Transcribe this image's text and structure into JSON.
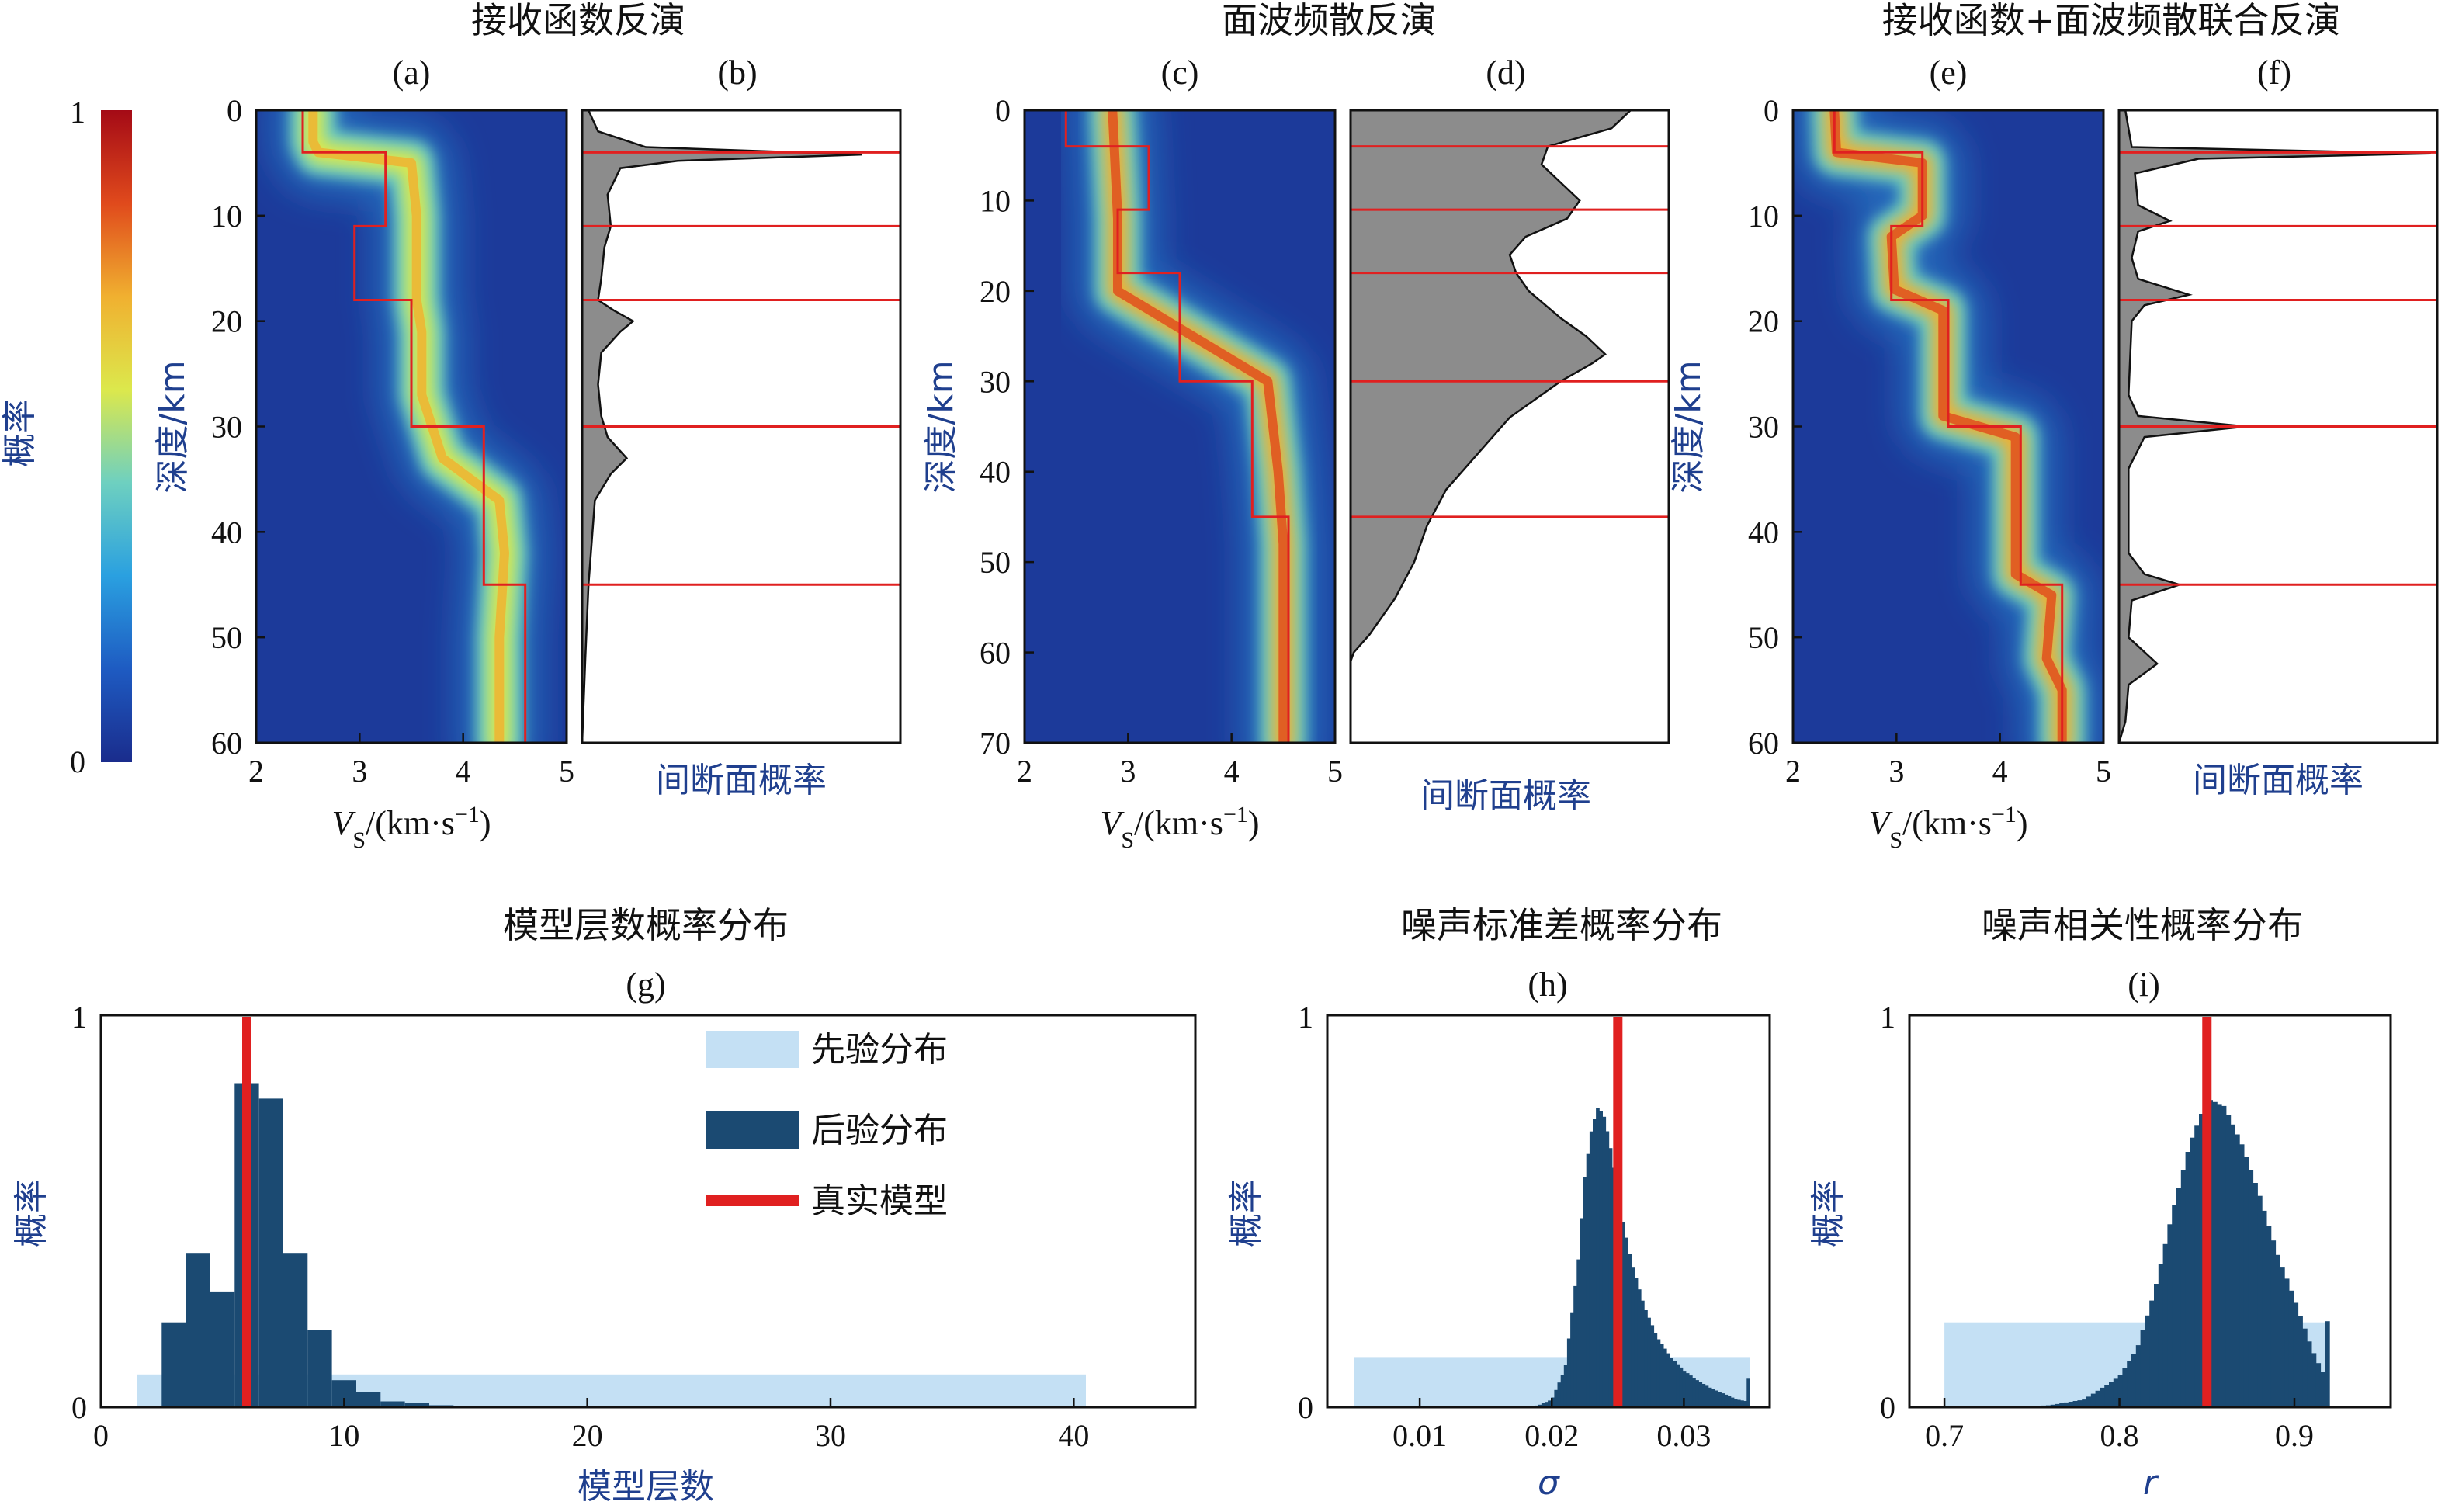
{
  "colors": {
    "cmap": [
      "#1a2c8c",
      "#1e5bc2",
      "#2aa0e0",
      "#6ed0c0",
      "#dce84c",
      "#f0b030",
      "#e04a1c",
      "#a40a16"
    ],
    "heat_bg": "#1c3a9a",
    "true_model": "#e02020",
    "disc_fill": "#8c8c8c",
    "prior": "#c4e0f4",
    "posterior": "#1b4a72",
    "blue_text": "#1f3f8e"
  },
  "colorbar": {
    "max_label": "1",
    "min_label": "0",
    "label": "概率"
  },
  "titles": {
    "rf": "接收函数反演",
    "sw": "面波频散反演",
    "joint": "接收函数+面波频散联合反演",
    "layers": "模型层数概率分布",
    "noise_std": "噪声标准差概率分布",
    "noise_corr": "噪声相关性概率分布"
  },
  "panels": {
    "a": "(a)",
    "b": "(b)",
    "c": "(c)",
    "d": "(d)",
    "e": "(e)",
    "f": "(f)",
    "g": "(g)",
    "h": "(h)",
    "i": "(i)"
  },
  "labels": {
    "depth": "深度/km",
    "vs_prefix": "V",
    "vs_sub": "S",
    "vs_unit": "/(km·s",
    "vs_sup": "−1",
    "vs_close": ")",
    "disc_prob": "间断面概率",
    "prob": "概率",
    "layer_count": "模型层数",
    "sigma": "σ",
    "r": "r"
  },
  "legend": {
    "prior": "先验分布",
    "posterior": "后验分布",
    "true": "真实模型"
  },
  "chart_data": [
    {
      "id": "a",
      "type": "heatmap",
      "x_ticks": [
        2,
        3,
        4,
        5
      ],
      "y_ticks": [
        0,
        10,
        20,
        30,
        40,
        50,
        60
      ],
      "xlim": [
        2,
        5
      ],
      "ylim": [
        0,
        60
      ],
      "posterior_path": [
        [
          0,
          2.55
        ],
        [
          3,
          2.55
        ],
        [
          4,
          2.6
        ],
        [
          5,
          3.5
        ],
        [
          10,
          3.55
        ],
        [
          18,
          3.55
        ],
        [
          21,
          3.6
        ],
        [
          27,
          3.6
        ],
        [
          33,
          3.8
        ],
        [
          37,
          4.35
        ],
        [
          42,
          4.4
        ],
        [
          50,
          4.35
        ],
        [
          60,
          4.35
        ]
      ],
      "true_model": [
        [
          0,
          2.45
        ],
        [
          4,
          2.45
        ],
        [
          4,
          3.25
        ],
        [
          11,
          3.25
        ],
        [
          11,
          2.95
        ],
        [
          18,
          2.95
        ],
        [
          18,
          3.5
        ],
        [
          30,
          3.5
        ],
        [
          30,
          4.2
        ],
        [
          45,
          4.2
        ],
        [
          45,
          4.6
        ],
        [
          60,
          4.6
        ]
      ]
    },
    {
      "id": "b",
      "type": "area",
      "ylim": [
        0,
        60
      ],
      "interfaces": [
        4,
        11,
        18,
        30,
        45
      ],
      "profile": [
        [
          0,
          0.02
        ],
        [
          2,
          0.05
        ],
        [
          3.5,
          0.2
        ],
        [
          4.2,
          0.88
        ],
        [
          4.8,
          0.3
        ],
        [
          5.5,
          0.12
        ],
        [
          8,
          0.08
        ],
        [
          11,
          0.09
        ],
        [
          13,
          0.07
        ],
        [
          16,
          0.06
        ],
        [
          18,
          0.05
        ],
        [
          19,
          0.1
        ],
        [
          20,
          0.16
        ],
        [
          21,
          0.12
        ],
        [
          23,
          0.06
        ],
        [
          26,
          0.05
        ],
        [
          29,
          0.06
        ],
        [
          31,
          0.08
        ],
        [
          33,
          0.14
        ],
        [
          34.5,
          0.09
        ],
        [
          37,
          0.04
        ],
        [
          45,
          0.02
        ],
        [
          52,
          0.01
        ],
        [
          60,
          0.0
        ]
      ]
    },
    {
      "id": "c",
      "type": "heatmap",
      "x_ticks": [
        2,
        3,
        4,
        5
      ],
      "y_ticks": [
        0,
        10,
        20,
        30,
        40,
        50,
        60,
        70
      ],
      "xlim": [
        2,
        5
      ],
      "ylim": [
        0,
        70
      ],
      "posterior_path": [
        [
          0,
          2.85
        ],
        [
          12,
          2.9
        ],
        [
          20,
          2.9
        ],
        [
          30,
          4.35
        ],
        [
          40,
          4.45
        ],
        [
          48,
          4.5
        ],
        [
          70,
          4.5
        ]
      ],
      "true_model": [
        [
          0,
          2.4
        ],
        [
          4,
          2.4
        ],
        [
          4,
          3.2
        ],
        [
          11,
          3.2
        ],
        [
          11,
          2.9
        ],
        [
          18,
          2.9
        ],
        [
          18,
          3.5
        ],
        [
          30,
          3.5
        ],
        [
          30,
          4.2
        ],
        [
          45,
          4.2
        ],
        [
          45,
          4.55
        ],
        [
          70,
          4.55
        ]
      ]
    },
    {
      "id": "d",
      "type": "area",
      "ylim": [
        0,
        70
      ],
      "interfaces": [
        4,
        11,
        18,
        30,
        45
      ],
      "profile": [
        [
          0,
          0.88
        ],
        [
          2,
          0.82
        ],
        [
          4,
          0.62
        ],
        [
          6,
          0.6
        ],
        [
          8,
          0.66
        ],
        [
          10,
          0.72
        ],
        [
          12,
          0.68
        ],
        [
          14,
          0.55
        ],
        [
          16,
          0.5
        ],
        [
          18,
          0.52
        ],
        [
          20,
          0.56
        ],
        [
          23,
          0.66
        ],
        [
          25,
          0.74
        ],
        [
          27,
          0.8
        ],
        [
          28,
          0.76
        ],
        [
          30,
          0.66
        ],
        [
          34,
          0.5
        ],
        [
          38,
          0.4
        ],
        [
          42,
          0.3
        ],
        [
          46,
          0.24
        ],
        [
          50,
          0.2
        ],
        [
          54,
          0.14
        ],
        [
          58,
          0.06
        ],
        [
          60,
          0.01
        ],
        [
          61,
          0.0
        ],
        [
          70,
          0.0
        ]
      ]
    },
    {
      "id": "e",
      "type": "heatmap",
      "x_ticks": [
        2,
        3,
        4,
        5
      ],
      "y_ticks": [
        0,
        10,
        20,
        30,
        40,
        50,
        60
      ],
      "xlim": [
        2,
        5
      ],
      "ylim": [
        0,
        60
      ],
      "posterior_path": [
        [
          0,
          2.4
        ],
        [
          4,
          2.42
        ],
        [
          5,
          3.25
        ],
        [
          10,
          3.25
        ],
        [
          12,
          2.95
        ],
        [
          17,
          2.98
        ],
        [
          19,
          3.45
        ],
        [
          29,
          3.45
        ],
        [
          31,
          4.15
        ],
        [
          44,
          4.15
        ],
        [
          46,
          4.5
        ],
        [
          52,
          4.45
        ],
        [
          55,
          4.6
        ],
        [
          60,
          4.6
        ]
      ],
      "true_model": [
        [
          0,
          2.4
        ],
        [
          4,
          2.4
        ],
        [
          4,
          3.25
        ],
        [
          11,
          3.25
        ],
        [
          11,
          2.95
        ],
        [
          18,
          2.95
        ],
        [
          18,
          3.5
        ],
        [
          30,
          3.5
        ],
        [
          30,
          4.2
        ],
        [
          45,
          4.2
        ],
        [
          45,
          4.6
        ],
        [
          60,
          4.6
        ]
      ]
    },
    {
      "id": "f",
      "type": "area",
      "ylim": [
        0,
        60
      ],
      "interfaces": [
        4,
        11,
        18,
        30,
        45
      ],
      "profile": [
        [
          0,
          0.02
        ],
        [
          3.5,
          0.04
        ],
        [
          4.1,
          0.98
        ],
        [
          4.6,
          0.25
        ],
        [
          6,
          0.05
        ],
        [
          9,
          0.06
        ],
        [
          10.5,
          0.16
        ],
        [
          11.5,
          0.06
        ],
        [
          14,
          0.04
        ],
        [
          16,
          0.06
        ],
        [
          17.5,
          0.22
        ],
        [
          18.5,
          0.08
        ],
        [
          20,
          0.04
        ],
        [
          27,
          0.03
        ],
        [
          29,
          0.06
        ],
        [
          30,
          0.4
        ],
        [
          31,
          0.08
        ],
        [
          34,
          0.03
        ],
        [
          42,
          0.03
        ],
        [
          44,
          0.08
        ],
        [
          45,
          0.19
        ],
        [
          46.5,
          0.04
        ],
        [
          50,
          0.03
        ],
        [
          52.5,
          0.12
        ],
        [
          54.5,
          0.03
        ],
        [
          58,
          0.02
        ],
        [
          60,
          0.0
        ]
      ]
    },
    {
      "id": "g",
      "type": "bar",
      "xlim": [
        0,
        45
      ],
      "ylim": [
        0,
        1
      ],
      "x_ticks": [
        0,
        10,
        20,
        30,
        40
      ],
      "y_tick_labels": [
        "0",
        "1"
      ],
      "prior": {
        "x_range": [
          1.5,
          40.5
        ],
        "value": 0.085
      },
      "bins": [
        [
          3,
          0.22
        ],
        [
          4,
          0.4
        ],
        [
          5,
          0.3
        ],
        [
          6,
          0.84
        ],
        [
          7,
          0.8
        ],
        [
          8,
          0.4
        ],
        [
          9,
          0.2
        ],
        [
          10,
          0.07
        ],
        [
          11,
          0.04
        ],
        [
          12,
          0.015
        ],
        [
          13,
          0.01
        ],
        [
          14,
          0.005
        ],
        [
          15,
          0.003
        ]
      ],
      "true_value": 6
    },
    {
      "id": "h",
      "type": "bar",
      "xlim": [
        0.003,
        0.0365
      ],
      "ylim": [
        0,
        1
      ],
      "x_ticks": [
        0.01,
        0.02,
        0.03
      ],
      "y_tick_labels": [
        "0",
        "1"
      ],
      "prior": {
        "x_range": [
          0.005,
          0.035
        ],
        "value": 0.13
      },
      "curve": [
        [
          0.018,
          0.0
        ],
        [
          0.019,
          0.005
        ],
        [
          0.02,
          0.02
        ],
        [
          0.021,
          0.1
        ],
        [
          0.022,
          0.38
        ],
        [
          0.0225,
          0.6
        ],
        [
          0.023,
          0.72
        ],
        [
          0.0235,
          0.78
        ],
        [
          0.024,
          0.75
        ],
        [
          0.0245,
          0.66
        ],
        [
          0.025,
          0.55
        ],
        [
          0.026,
          0.38
        ],
        [
          0.027,
          0.26
        ],
        [
          0.028,
          0.18
        ],
        [
          0.029,
          0.13
        ],
        [
          0.03,
          0.095
        ],
        [
          0.031,
          0.07
        ],
        [
          0.032,
          0.05
        ],
        [
          0.033,
          0.035
        ],
        [
          0.034,
          0.02
        ],
        [
          0.0348,
          0.015
        ],
        [
          0.0349,
          0.09
        ],
        [
          0.035,
          0.0
        ]
      ],
      "true_value": 0.025
    },
    {
      "id": "i",
      "type": "bar",
      "xlim": [
        0.68,
        0.955
      ],
      "ylim": [
        0,
        1
      ],
      "x_ticks": [
        0.7,
        0.8,
        0.9
      ],
      "y_tick_labels": [
        "0",
        "1"
      ],
      "prior": {
        "x_range": [
          0.7,
          0.92
        ],
        "value": 0.22
      },
      "curve": [
        [
          0.74,
          0.0
        ],
        [
          0.76,
          0.005
        ],
        [
          0.78,
          0.02
        ],
        [
          0.8,
          0.08
        ],
        [
          0.81,
          0.15
        ],
        [
          0.82,
          0.3
        ],
        [
          0.83,
          0.5
        ],
        [
          0.84,
          0.68
        ],
        [
          0.85,
          0.8
        ],
        [
          0.86,
          0.78
        ],
        [
          0.87,
          0.68
        ],
        [
          0.88,
          0.55
        ],
        [
          0.89,
          0.4
        ],
        [
          0.9,
          0.28
        ],
        [
          0.91,
          0.15
        ],
        [
          0.915,
          0.1
        ],
        [
          0.918,
          0.08
        ],
        [
          0.919,
          0.28
        ],
        [
          0.92,
          0.0
        ]
      ],
      "true_value": 0.85
    }
  ]
}
